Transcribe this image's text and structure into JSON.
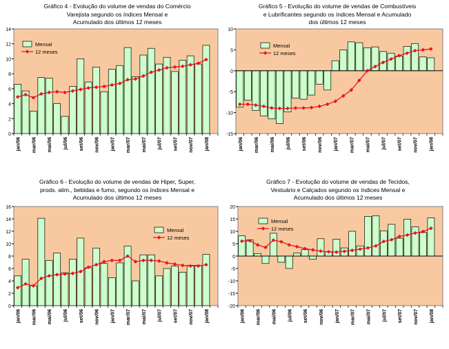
{
  "months": [
    "jan/06",
    "fev/06",
    "mar/06",
    "abr/06",
    "mai/06",
    "jun/06",
    "jul/06",
    "ago/06",
    "set/06",
    "out/06",
    "nov/06",
    "dez/06",
    "jan/07",
    "fev/07",
    "mar/07",
    "abr/07",
    "mai/07",
    "jun/07",
    "jul/07",
    "ago/07",
    "set/07",
    "out/07",
    "nov/07",
    "dez/07",
    "jan/08",
    "fev/08"
  ],
  "tick_labels": [
    "jan/06",
    "mar/06",
    "mai/06",
    "jul/06",
    "set/06",
    "nov/06",
    "jan/07",
    "mar/07",
    "mai/07",
    "jul/07",
    "set/07",
    "nov/07",
    "jan/08"
  ],
  "colors": {
    "plot_bg": "#F8C9A0",
    "bar_fill": "#CCFFCC",
    "line": "#E8141E"
  },
  "chart_data": [
    {
      "type": "bar+line",
      "title_lines": [
        "Gráfico 4 - Evolução do volume de vendas do Comércio",
        "Varejista segundo os índices Mensal e",
        "Acumulado dos últimos 12 meses"
      ],
      "ylim": [
        0,
        14
      ],
      "yticks": [
        0,
        2,
        4,
        6,
        8,
        10,
        12,
        14
      ],
      "legend": {
        "bar": "Mensal",
        "line": "12 meses"
      },
      "series": [
        {
          "name": "Mensal",
          "kind": "bar",
          "values": [
            6.6,
            5.7,
            3.0,
            7.5,
            7.4,
            4.0,
            2.3,
            6.3,
            10.0,
            6.9,
            8.9,
            5.6,
            8.6,
            9.1,
            11.5,
            7.6,
            10.5,
            11.4,
            9.3,
            10.2,
            8.3,
            9.8,
            10.4,
            9.3,
            11.8,
            null
          ]
        },
        {
          "name": "12 meses",
          "kind": "line",
          "values": [
            4.9,
            5.2,
            4.8,
            5.3,
            5.5,
            5.6,
            5.5,
            5.7,
            5.9,
            6.1,
            6.2,
            6.3,
            6.5,
            6.7,
            7.2,
            7.3,
            7.7,
            8.2,
            8.5,
            8.8,
            8.9,
            9.0,
            9.2,
            9.4,
            9.9,
            null
          ]
        }
      ]
    },
    {
      "type": "bar+line",
      "title_lines": [
        "Gráfico 5 - Evolução do volume de vendas de Combustíveis",
        "e Lubrificantes segundo os índices Mensal e Acumulado",
        "dos últimos 12 meses"
      ],
      "ylim": [
        -15,
        10
      ],
      "yticks": [
        -15,
        -10,
        -5,
        0,
        5,
        10
      ],
      "legend": {
        "bar": "Mensal",
        "line": "12 meses"
      },
      "series": [
        {
          "name": "Mensal",
          "kind": "bar",
          "values": [
            -8.7,
            -7.0,
            -9.5,
            -10.8,
            -11.5,
            -12.6,
            -9.8,
            -6.5,
            -6.8,
            -5.8,
            -3.2,
            -4.6,
            2.4,
            5.0,
            6.9,
            6.7,
            5.5,
            5.7,
            4.6,
            4.2,
            3.5,
            5.8,
            6.5,
            3.3,
            3.1,
            null
          ]
        },
        {
          "name": "12 meses",
          "kind": "line",
          "values": [
            -8.0,
            -8.0,
            -8.2,
            -8.5,
            -8.9,
            -9.0,
            -9.0,
            -8.9,
            -8.9,
            -8.8,
            -8.5,
            -8.0,
            -7.3,
            -6.0,
            -4.6,
            -2.3,
            0.0,
            1.0,
            2.0,
            2.8,
            3.6,
            4.2,
            4.8,
            5.0,
            5.2,
            null
          ]
        }
      ]
    },
    {
      "type": "bar+line",
      "title_lines": [
        "Gráfico 6 - Evolução do volume de vendas de Hiper, Super,",
        "prods. alim., bebidas e fumo, segundo os índices Mensal e",
        "Acumulado dos últimos 12 meses"
      ],
      "ylim": [
        0,
        16
      ],
      "yticks": [
        0,
        2,
        4,
        6,
        8,
        10,
        12,
        14,
        16
      ],
      "legend": {
        "bar": "Mensal",
        "line": "12 meses"
      },
      "series": [
        {
          "name": "Mensal",
          "kind": "bar",
          "values": [
            4.8,
            7.5,
            3.2,
            14.1,
            7.3,
            8.5,
            5.3,
            7.5,
            10.9,
            6.1,
            9.3,
            6.8,
            4.5,
            6.9,
            9.6,
            4.0,
            8.2,
            8.2,
            4.8,
            6.0,
            6.4,
            5.4,
            6.5,
            6.5,
            8.3,
            null
          ]
        },
        {
          "name": "12 meses",
          "kind": "line",
          "values": [
            2.9,
            3.5,
            3.2,
            4.4,
            4.8,
            5.0,
            5.1,
            5.2,
            5.5,
            6.2,
            6.6,
            7.1,
            7.3,
            7.3,
            8.0,
            7.1,
            7.3,
            7.3,
            7.2,
            6.9,
            6.7,
            6.5,
            6.4,
            6.4,
            6.6,
            null
          ]
        }
      ]
    },
    {
      "type": "bar+line",
      "title_lines": [
        "Gráfico 7 - Evolução do volume de vendas de Tecidos,",
        "Vestuário e Calçados segundo os índices Mensal e",
        "Acumulado dos últimos 12 meses"
      ],
      "ylim": [
        -20,
        20
      ],
      "yticks": [
        -20,
        -15,
        -10,
        -5,
        0,
        5,
        10,
        15,
        20
      ],
      "legend": {
        "bar": "Mensal",
        "line": "12 meses"
      },
      "series": [
        {
          "name": "Mensal",
          "kind": "bar",
          "values": [
            8.2,
            6.5,
            1.0,
            -3.0,
            9.2,
            -2.5,
            -5.0,
            1.2,
            2.6,
            -1.3,
            7.0,
            1.8,
            6.8,
            3.3,
            10.0,
            4.1,
            16.0,
            16.2,
            10.2,
            12.8,
            7.2,
            14.9,
            11.8,
            9.5,
            15.4,
            null
          ]
        },
        {
          "name": "12 meses",
          "kind": "line",
          "values": [
            6.0,
            6.2,
            4.5,
            3.5,
            6.4,
            5.8,
            4.5,
            3.8,
            3.0,
            2.5,
            2.0,
            1.7,
            1.6,
            1.9,
            2.3,
            2.8,
            3.3,
            4.1,
            5.9,
            6.6,
            7.9,
            8.5,
            9.3,
            9.9,
            11.2,
            null
          ]
        }
      ]
    }
  ]
}
